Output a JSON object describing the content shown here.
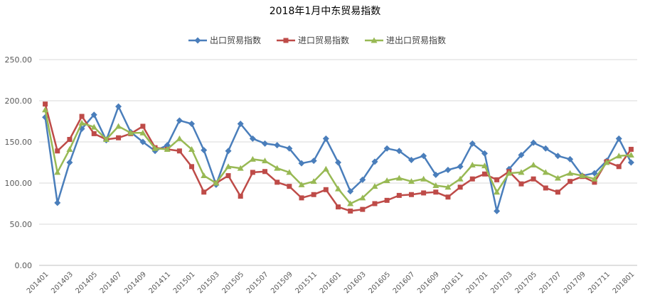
{
  "chart_data": {
    "type": "line",
    "title": "2018年1月中东贸易指数",
    "xlabel": "",
    "ylabel": "",
    "ylim": [
      0,
      250
    ],
    "yticks": [
      "0.00",
      "50.00",
      "100.00",
      "150.00",
      "200.00",
      "250.00"
    ],
    "grid": true,
    "legend_position": "top",
    "x": [
      "201401",
      "201402",
      "201403",
      "201404",
      "201405",
      "201406",
      "201407",
      "201408",
      "201409",
      "201410",
      "201411",
      "201412",
      "201501",
      "201502",
      "201503",
      "201504",
      "201505",
      "201506",
      "201507",
      "201508",
      "201509",
      "201510",
      "201511",
      "201512",
      "201601",
      "201602",
      "201603",
      "201604",
      "201605",
      "201606",
      "201607",
      "201608",
      "201609",
      "201610",
      "201611",
      "201612",
      "201701",
      "201702",
      "201703",
      "201704",
      "201705",
      "201706",
      "201707",
      "201708",
      "201709",
      "201710",
      "201711",
      "201712",
      "201801"
    ],
    "xtick_labels": [
      "201401",
      "201403",
      "201405",
      "201407",
      "201409",
      "201411",
      "201501",
      "201503",
      "201505",
      "201507",
      "201509",
      "201511",
      "201601",
      "201603",
      "201605",
      "201607",
      "201609",
      "201611",
      "201701",
      "201703",
      "201705",
      "201707",
      "201709",
      "201711",
      "201801"
    ],
    "series": [
      {
        "name": "出口贸易指数",
        "color": "#4a7ebb",
        "marker": "diamond",
        "values": [
          180,
          76,
          125,
          166,
          183,
          152,
          193,
          162,
          150,
          139,
          146,
          176,
          172,
          140,
          98,
          139,
          172,
          154,
          148,
          146,
          142,
          124,
          127,
          154,
          125,
          90,
          104,
          126,
          142,
          139,
          128,
          133,
          110,
          116,
          120,
          148,
          136,
          66,
          117,
          134,
          149,
          142,
          133,
          129,
          109,
          112,
          127,
          154,
          125
        ]
      },
      {
        "name": "进口贸易指数",
        "color": "#be4b48",
        "marker": "square",
        "values": [
          196,
          139,
          153,
          181,
          160,
          153,
          155,
          160,
          169,
          143,
          141,
          139,
          120,
          89,
          100,
          109,
          84,
          113,
          114,
          101,
          96,
          82,
          86,
          92,
          71,
          66,
          68,
          75,
          79,
          85,
          86,
          88,
          89,
          83,
          95,
          105,
          111,
          104,
          114,
          99,
          105,
          94,
          89,
          102,
          108,
          101,
          126,
          120,
          141
        ]
      },
      {
        "name": "进出口贸易指数",
        "color": "#98b954",
        "marker": "triangle",
        "values": [
          189,
          113,
          141,
          173,
          168,
          153,
          169,
          161,
          161,
          142,
          141,
          154,
          141,
          109,
          100,
          120,
          118,
          129,
          127,
          118,
          113,
          98,
          102,
          117,
          93,
          75,
          82,
          96,
          103,
          106,
          102,
          105,
          97,
          95,
          105,
          122,
          121,
          89,
          112,
          113,
          122,
          113,
          106,
          112,
          109,
          105,
          125,
          133,
          134
        ]
      }
    ]
  }
}
